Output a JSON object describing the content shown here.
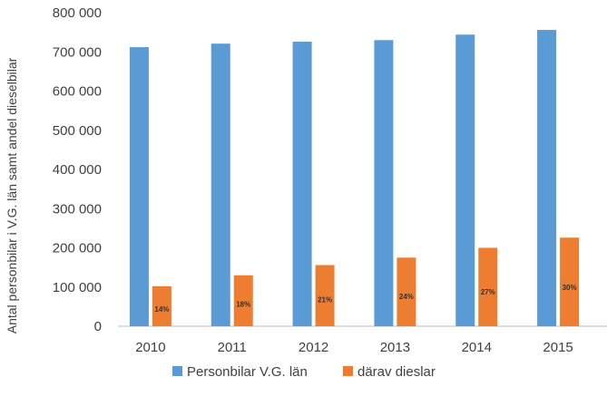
{
  "chart_data": {
    "type": "bar",
    "title": "",
    "xlabel": "",
    "ylabel": "Antal personbilar i V.G. län samt andel dieselbilar",
    "categories": [
      "2010",
      "2011",
      "2012",
      "2013",
      "2014",
      "2015"
    ],
    "series": [
      {
        "name": "Personbilar V.G. län",
        "color": "#5B9BD5",
        "values": [
          712000,
          721000,
          726000,
          730000,
          744000,
          756000
        ]
      },
      {
        "name": "därav dieslar",
        "color": "#ED7D31",
        "values": [
          102000,
          130000,
          156000,
          175000,
          200000,
          226000
        ],
        "labels": [
          "14%",
          "18%",
          "21%",
          "24%",
          "27%",
          "30%"
        ]
      }
    ],
    "ylim": [
      0,
      800000
    ],
    "yticks": [
      0,
      100000,
      200000,
      300000,
      400000,
      500000,
      600000,
      700000,
      800000
    ],
    "ytick_labels": [
      "0",
      "100 000",
      "200 000",
      "300 000",
      "400 000",
      "500 000",
      "600 000",
      "700 000",
      "800 000"
    ],
    "grid": false,
    "legend_position": "bottom"
  }
}
